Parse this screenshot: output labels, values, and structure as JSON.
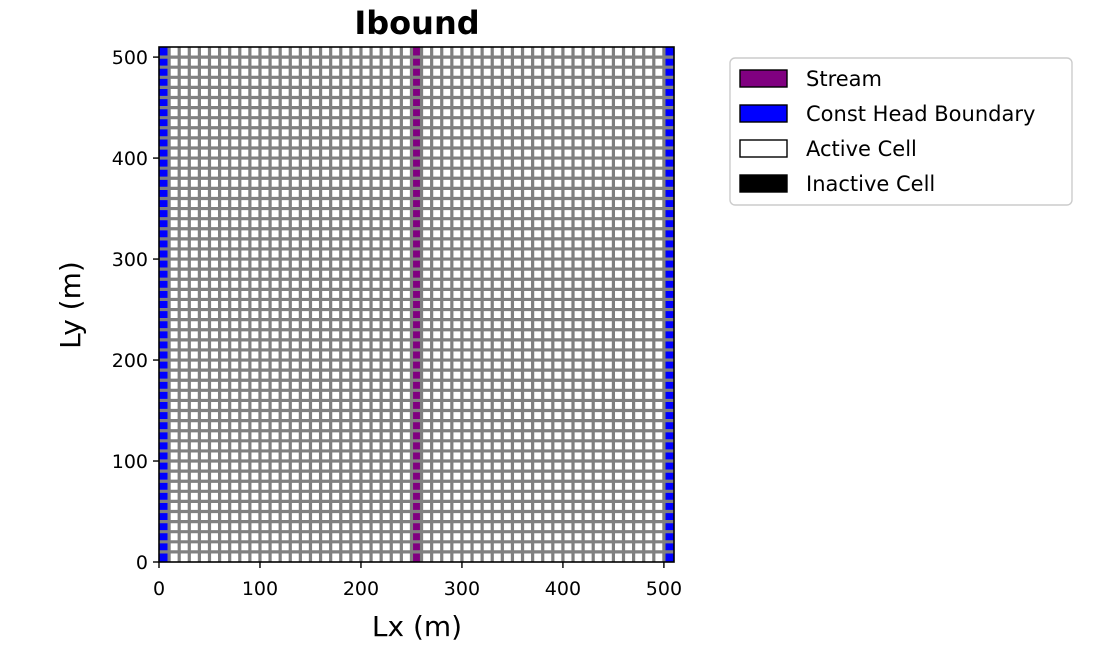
{
  "chart_data": {
    "type": "heatmap",
    "title": "Ibound",
    "xlabel": "Lx (m)",
    "ylabel": "Ly (m)",
    "xlim": [
      0,
      510
    ],
    "ylim": [
      0,
      510
    ],
    "grid": {
      "ncol": 51,
      "nrow": 51,
      "cell_size": 10,
      "gridline_color": "#808080"
    },
    "x_ticks": [
      0,
      100,
      200,
      300,
      400,
      500
    ],
    "y_ticks": [
      0,
      100,
      200,
      300,
      400,
      500
    ],
    "columns": [
      {
        "name": "Const Head Boundary",
        "x_range": [
          0,
          10
        ],
        "color": "#0000ff"
      },
      {
        "name": "Stream",
        "x_range": [
          250,
          260
        ],
        "color": "#800080"
      },
      {
        "name": "Const Head Boundary",
        "x_range": [
          500,
          510
        ],
        "color": "#0000ff"
      }
    ],
    "legend": {
      "position": "outside-right-top",
      "entries": [
        {
          "label": "Stream",
          "color": "#800080"
        },
        {
          "label": "Const Head Boundary",
          "color": "#0000ff"
        },
        {
          "label": "Active Cell",
          "color": "#ffffff"
        },
        {
          "label": "Inactive Cell",
          "color": "#000000"
        }
      ]
    }
  }
}
